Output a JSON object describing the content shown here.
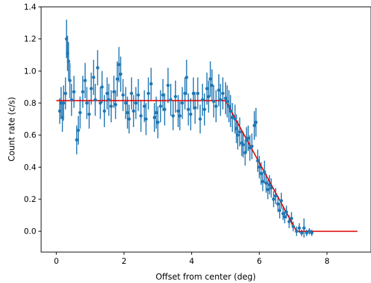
{
  "chart_data": {
    "type": "scatter",
    "xlabel": "Offset from center (deg)",
    "ylabel": "Count rate (c/s)",
    "xlim": [
      -0.45,
      9.3
    ],
    "ylim": [
      -0.13,
      1.4
    ],
    "xticks": [
      0,
      2,
      4,
      6,
      8
    ],
    "yticks": [
      0.0,
      0.2,
      0.4,
      0.6,
      0.8,
      1.0,
      1.2,
      1.4
    ],
    "xtick_labels": [
      "0",
      "2",
      "4",
      "6",
      "8"
    ],
    "ytick_labels": [
      "0.0",
      "0.2",
      "0.4",
      "0.6",
      "0.8",
      "1.0",
      "1.2",
      "1.4"
    ],
    "grid": false,
    "series": [
      {
        "kind": "errorbar-scatter",
        "color": "#1f77b4",
        "points": [
          {
            "x": 0.1,
            "y": 0.75,
            "err": 0.08
          },
          {
            "x": 0.14,
            "y": 0.8,
            "err": 0.1
          },
          {
            "x": 0.18,
            "y": 0.71,
            "err": 0.09
          },
          {
            "x": 0.21,
            "y": 0.8,
            "err": 0.11
          },
          {
            "x": 0.27,
            "y": 0.86,
            "err": 0.1
          },
          {
            "x": 0.3,
            "y": 1.2,
            "err": 0.12
          },
          {
            "x": 0.33,
            "y": 1.11,
            "err": 0.11
          },
          {
            "x": 0.36,
            "y": 1.06,
            "err": 0.12
          },
          {
            "x": 0.4,
            "y": 0.94,
            "err": 0.11
          },
          {
            "x": 0.45,
            "y": 0.82,
            "err": 0.1
          },
          {
            "x": 0.52,
            "y": 0.87,
            "err": 0.1
          },
          {
            "x": 0.6,
            "y": 0.57,
            "err": 0.09
          },
          {
            "x": 0.65,
            "y": 0.63,
            "err": 0.09
          },
          {
            "x": 0.7,
            "y": 0.74,
            "err": 0.1
          },
          {
            "x": 0.78,
            "y": 0.87,
            "err": 0.1
          },
          {
            "x": 0.85,
            "y": 0.94,
            "err": 0.11
          },
          {
            "x": 0.9,
            "y": 0.8,
            "err": 0.1
          },
          {
            "x": 0.97,
            "y": 0.73,
            "err": 0.09
          },
          {
            "x": 1.03,
            "y": 0.89,
            "err": 0.1
          },
          {
            "x": 1.1,
            "y": 0.96,
            "err": 0.11
          },
          {
            "x": 1.15,
            "y": 0.82,
            "err": 0.1
          },
          {
            "x": 1.22,
            "y": 1.02,
            "err": 0.11
          },
          {
            "x": 1.3,
            "y": 0.8,
            "err": 0.1
          },
          {
            "x": 1.35,
            "y": 0.9,
            "err": 0.1
          },
          {
            "x": 1.42,
            "y": 0.75,
            "err": 0.1
          },
          {
            "x": 1.5,
            "y": 0.86,
            "err": 0.1
          },
          {
            "x": 1.55,
            "y": 0.82,
            "err": 0.1
          },
          {
            "x": 1.62,
            "y": 0.78,
            "err": 0.1
          },
          {
            "x": 1.7,
            "y": 0.87,
            "err": 0.1
          },
          {
            "x": 1.75,
            "y": 0.79,
            "err": 0.09
          },
          {
            "x": 1.8,
            "y": 0.95,
            "err": 0.11
          },
          {
            "x": 1.85,
            "y": 1.04,
            "err": 0.11
          },
          {
            "x": 1.9,
            "y": 0.98,
            "err": 0.11
          },
          {
            "x": 1.97,
            "y": 0.85,
            "err": 0.1
          },
          {
            "x": 2.05,
            "y": 0.8,
            "err": 0.1
          },
          {
            "x": 2.1,
            "y": 0.74,
            "err": 0.1
          },
          {
            "x": 2.15,
            "y": 0.7,
            "err": 0.09
          },
          {
            "x": 2.22,
            "y": 0.86,
            "err": 0.1
          },
          {
            "x": 2.28,
            "y": 0.75,
            "err": 0.1
          },
          {
            "x": 2.35,
            "y": 0.8,
            "err": 0.1
          },
          {
            "x": 2.42,
            "y": 0.85,
            "err": 0.1
          },
          {
            "x": 2.5,
            "y": 0.72,
            "err": 0.1
          },
          {
            "x": 2.6,
            "y": 0.78,
            "err": 0.1
          },
          {
            "x": 2.65,
            "y": 0.7,
            "err": 0.1
          },
          {
            "x": 2.72,
            "y": 0.86,
            "err": 0.1
          },
          {
            "x": 2.8,
            "y": 0.92,
            "err": 0.1
          },
          {
            "x": 2.9,
            "y": 0.71,
            "err": 0.09
          },
          {
            "x": 2.95,
            "y": 0.74,
            "err": 0.1
          },
          {
            "x": 3.0,
            "y": 0.68,
            "err": 0.1
          },
          {
            "x": 3.08,
            "y": 0.78,
            "err": 0.1
          },
          {
            "x": 3.15,
            "y": 0.85,
            "err": 0.1
          },
          {
            "x": 3.2,
            "y": 0.76,
            "err": 0.1
          },
          {
            "x": 3.3,
            "y": 0.91,
            "err": 0.11
          },
          {
            "x": 3.38,
            "y": 0.82,
            "err": 0.1
          },
          {
            "x": 3.45,
            "y": 0.72,
            "err": 0.09
          },
          {
            "x": 3.52,
            "y": 0.84,
            "err": 0.1
          },
          {
            "x": 3.6,
            "y": 0.75,
            "err": 0.1
          },
          {
            "x": 3.65,
            "y": 0.72,
            "err": 0.09
          },
          {
            "x": 3.72,
            "y": 0.8,
            "err": 0.1
          },
          {
            "x": 3.8,
            "y": 0.86,
            "err": 0.1
          },
          {
            "x": 3.85,
            "y": 0.96,
            "err": 0.11
          },
          {
            "x": 3.9,
            "y": 0.76,
            "err": 0.1
          },
          {
            "x": 3.97,
            "y": 0.73,
            "err": 0.1
          },
          {
            "x": 4.05,
            "y": 0.86,
            "err": 0.1
          },
          {
            "x": 4.1,
            "y": 0.77,
            "err": 0.1
          },
          {
            "x": 4.18,
            "y": 0.86,
            "err": 0.1
          },
          {
            "x": 4.25,
            "y": 0.7,
            "err": 0.09
          },
          {
            "x": 4.32,
            "y": 0.82,
            "err": 0.1
          },
          {
            "x": 4.38,
            "y": 0.76,
            "err": 0.1
          },
          {
            "x": 4.45,
            "y": 0.89,
            "err": 0.1
          },
          {
            "x": 4.5,
            "y": 0.84,
            "err": 0.1
          },
          {
            "x": 4.55,
            "y": 0.95,
            "err": 0.11
          },
          {
            "x": 4.6,
            "y": 0.91,
            "err": 0.1
          },
          {
            "x": 4.65,
            "y": 0.81,
            "err": 0.1
          },
          {
            "x": 4.72,
            "y": 0.78,
            "err": 0.1
          },
          {
            "x": 4.8,
            "y": 0.88,
            "err": 0.1
          },
          {
            "x": 4.85,
            "y": 0.82,
            "err": 0.1
          },
          {
            "x": 4.92,
            "y": 0.86,
            "err": 0.1
          },
          {
            "x": 5.0,
            "y": 0.83,
            "err": 0.1
          },
          {
            "x": 5.05,
            "y": 0.81,
            "err": 0.1
          },
          {
            "x": 5.1,
            "y": 0.78,
            "err": 0.1
          },
          {
            "x": 5.15,
            "y": 0.75,
            "err": 0.1
          },
          {
            "x": 5.2,
            "y": 0.71,
            "err": 0.09
          },
          {
            "x": 5.28,
            "y": 0.7,
            "err": 0.09
          },
          {
            "x": 5.32,
            "y": 0.64,
            "err": 0.09
          },
          {
            "x": 5.36,
            "y": 0.6,
            "err": 0.09
          },
          {
            "x": 5.42,
            "y": 0.62,
            "err": 0.09
          },
          {
            "x": 5.48,
            "y": 0.55,
            "err": 0.08
          },
          {
            "x": 5.52,
            "y": 0.54,
            "err": 0.08
          },
          {
            "x": 5.58,
            "y": 0.49,
            "err": 0.08
          },
          {
            "x": 5.62,
            "y": 0.57,
            "err": 0.08
          },
          {
            "x": 5.67,
            "y": 0.58,
            "err": 0.08
          },
          {
            "x": 5.72,
            "y": 0.52,
            "err": 0.08
          },
          {
            "x": 5.78,
            "y": 0.53,
            "err": 0.08
          },
          {
            "x": 5.85,
            "y": 0.66,
            "err": 0.09
          },
          {
            "x": 5.9,
            "y": 0.68,
            "err": 0.09
          },
          {
            "x": 5.95,
            "y": 0.44,
            "err": 0.07
          },
          {
            "x": 6.0,
            "y": 0.4,
            "err": 0.07
          },
          {
            "x": 6.05,
            "y": 0.36,
            "err": 0.07
          },
          {
            "x": 6.1,
            "y": 0.31,
            "err": 0.06
          },
          {
            "x": 6.15,
            "y": 0.37,
            "err": 0.07
          },
          {
            "x": 6.2,
            "y": 0.3,
            "err": 0.06
          },
          {
            "x": 6.25,
            "y": 0.26,
            "err": 0.06
          },
          {
            "x": 6.3,
            "y": 0.29,
            "err": 0.06
          },
          {
            "x": 6.35,
            "y": 0.27,
            "err": 0.06
          },
          {
            "x": 6.42,
            "y": 0.2,
            "err": 0.05
          },
          {
            "x": 6.48,
            "y": 0.22,
            "err": 0.05
          },
          {
            "x": 6.55,
            "y": 0.17,
            "err": 0.05
          },
          {
            "x": 6.6,
            "y": 0.13,
            "err": 0.05
          },
          {
            "x": 6.65,
            "y": 0.19,
            "err": 0.05
          },
          {
            "x": 6.7,
            "y": 0.11,
            "err": 0.04
          },
          {
            "x": 6.75,
            "y": 0.09,
            "err": 0.04
          },
          {
            "x": 6.8,
            "y": 0.12,
            "err": 0.04
          },
          {
            "x": 6.88,
            "y": 0.06,
            "err": 0.04
          },
          {
            "x": 6.95,
            "y": 0.08,
            "err": 0.04
          },
          {
            "x": 7.0,
            "y": 0.03,
            "err": 0.03
          },
          {
            "x": 7.1,
            "y": 0.0,
            "err": 0.03
          },
          {
            "x": 7.18,
            "y": 0.02,
            "err": 0.03
          },
          {
            "x": 7.25,
            "y": -0.01,
            "err": 0.02
          },
          {
            "x": 7.32,
            "y": 0.02,
            "err": 0.06
          },
          {
            "x": 7.4,
            "y": -0.01,
            "err": 0.02
          },
          {
            "x": 7.48,
            "y": 0.0,
            "err": 0.02
          },
          {
            "x": 7.55,
            "y": -0.01,
            "err": 0.02
          }
        ]
      },
      {
        "kind": "model-line",
        "color": "#e00000",
        "x": [
          0.0,
          5.0,
          7.1,
          8.9
        ],
        "y": [
          0.815,
          0.815,
          0.0,
          0.0
        ]
      }
    ]
  }
}
